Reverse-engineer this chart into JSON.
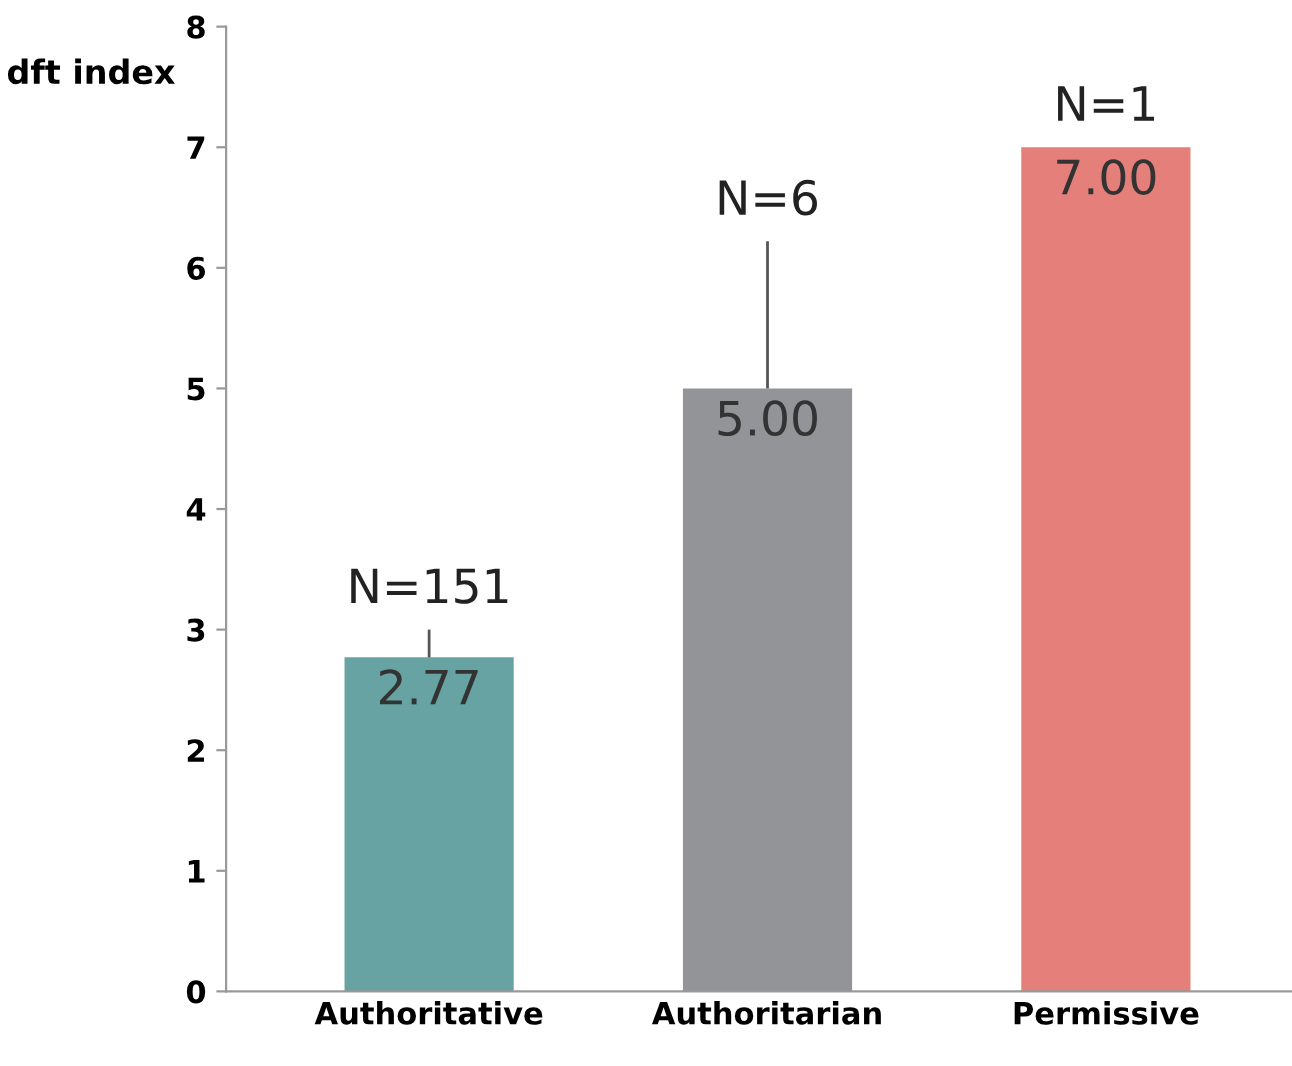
{
  "chart_data": {
    "type": "bar",
    "ylabel": "dft index",
    "categories": [
      "Authoritative",
      "Authoritarian",
      "Permissive"
    ],
    "values": [
      2.77,
      5.0,
      7.0
    ],
    "colors": [
      "#66a3a2",
      "#939497",
      "#e47f7a"
    ],
    "errors": [
      [
        2.77,
        3.0
      ],
      [
        5.0,
        6.22
      ],
      null
    ],
    "value_labels": [
      "2.77",
      "5.00",
      "7.00"
    ],
    "annotations": [
      {
        "text": "N=151",
        "x": "Authoritative",
        "y": 3.0
      },
      {
        "text": "N=6",
        "x": "Authoritarian",
        "y": 6.22
      },
      {
        "text": "N=1",
        "x": "Permissive",
        "y": 7.0
      }
    ],
    "ylim": [
      0,
      8
    ],
    "yticks": [
      0,
      1,
      2,
      3,
      4,
      5,
      6,
      7,
      8
    ],
    "grid": false
  }
}
